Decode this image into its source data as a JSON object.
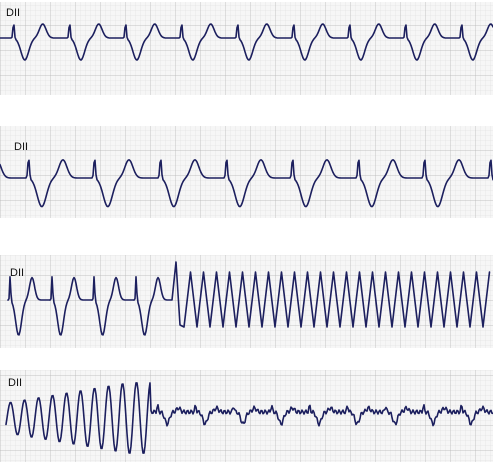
{
  "strips": [
    {
      "label": "DII"
    },
    {
      "label": "DII"
    },
    {
      "label": "DII"
    },
    {
      "label": "DII"
    }
  ]
}
